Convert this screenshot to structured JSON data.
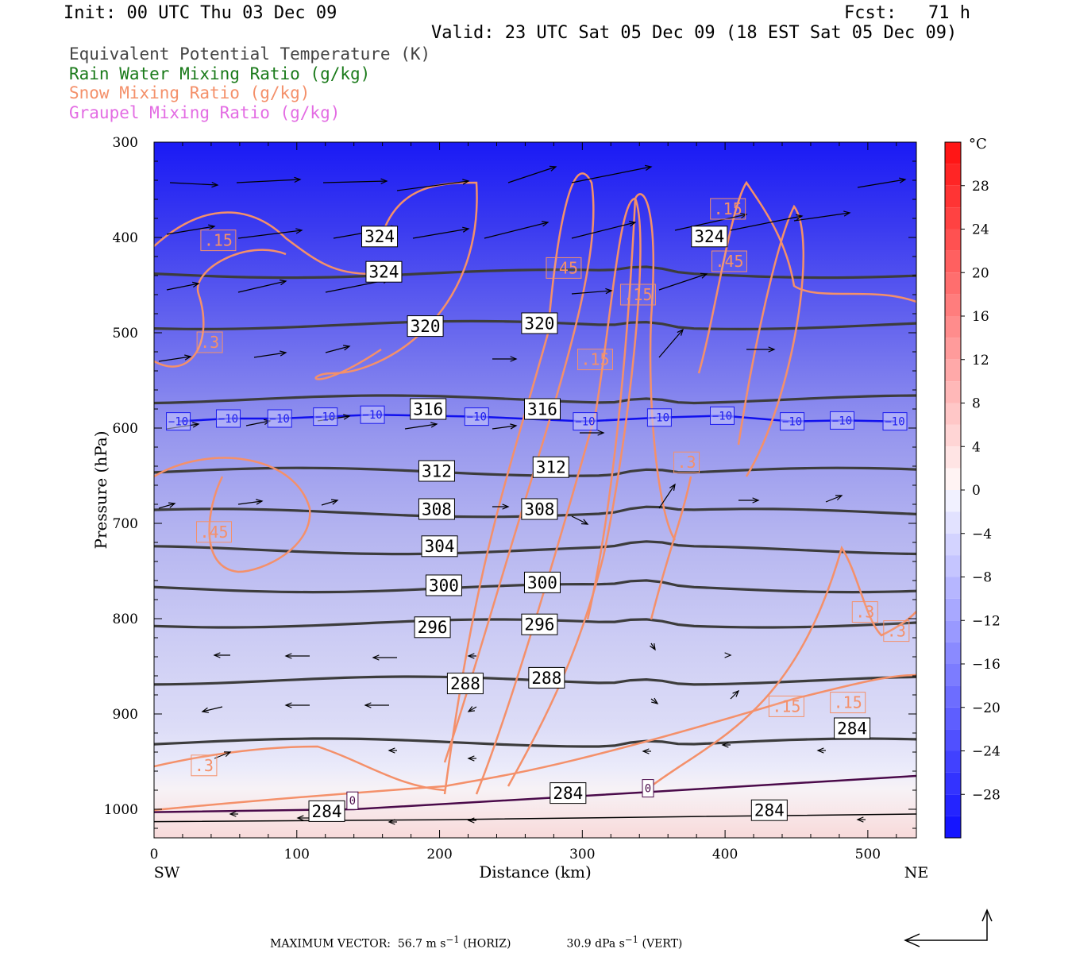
{
  "header": {
    "init": "Init: 00 UTC Thu 03 Dec 09",
    "fcst": "Fcst:   71 h",
    "valid": "Valid: 23 UTC Sat 05 Dec 09 (18 EST Sat 05 Dec 09)"
  },
  "fields": [
    {
      "label": "Equivalent Potential Temperature (K)",
      "color": "#444444"
    },
    {
      "label": "Rain Water Mixing Ratio (g/kg)",
      "color": "#1a7a1a"
    },
    {
      "label": "Snow Mixing Ratio (g/kg)",
      "color": "#f4906a"
    },
    {
      "label": "Graupel Mixing Ratio (g/kg)",
      "color": "#e36ce3"
    }
  ],
  "chart_data": {
    "type": "cross-section",
    "xlabel": "Distance (km)",
    "ylabel": "Pressure (hPa)",
    "x_ticks": [
      0,
      100,
      200,
      300,
      400,
      500
    ],
    "y_ticks": [
      300,
      400,
      500,
      600,
      700,
      800,
      900,
      1000
    ],
    "xlim": [
      0,
      534
    ],
    "ylim": [
      300,
      1030
    ],
    "left_end": "SW",
    "right_end": "NE",
    "colorbar": {
      "unit": "°C",
      "tick_labels": [
        "28",
        "24",
        "20",
        "16",
        "12",
        "8",
        "4",
        "0",
        "−4",
        "−8",
        "−12",
        "−16",
        "−20",
        "−24",
        "−28"
      ],
      "range": [
        -32,
        32
      ]
    },
    "theta_e_contours": [
      {
        "value": 324,
        "p": 438
      },
      {
        "value": 320,
        "p": 492
      },
      {
        "value": 316,
        "p": 570
      },
      {
        "value": 312,
        "p": 646
      },
      {
        "value": 308,
        "p": 689
      },
      {
        "value": 304,
        "p": 728
      },
      {
        "value": 300,
        "p": 768
      },
      {
        "value": 296,
        "p": 805
      },
      {
        "value": 288,
        "p": 865
      },
      {
        "value": 284,
        "p": 930
      }
    ],
    "theta_e_labels": [
      {
        "text": "324",
        "x": 158,
        "p": 399
      },
      {
        "text": "324",
        "x": 161,
        "p": 436
      },
      {
        "text": "324",
        "x": 389,
        "p": 399
      },
      {
        "text": "320",
        "x": 190,
        "p": 493
      },
      {
        "text": "320",
        "x": 270,
        "p": 490
      },
      {
        "text": "316",
        "x": 192,
        "p": 580
      },
      {
        "text": "316",
        "x": 272,
        "p": 580
      },
      {
        "text": "312",
        "x": 198,
        "p": 645
      },
      {
        "text": "312",
        "x": 278,
        "p": 641
      },
      {
        "text": "308",
        "x": 198,
        "p": 685
      },
      {
        "text": "308",
        "x": 270,
        "p": 685
      },
      {
        "text": "304",
        "x": 200,
        "p": 724
      },
      {
        "text": "300",
        "x": 203,
        "p": 765
      },
      {
        "text": "300",
        "x": 272,
        "p": 762
      },
      {
        "text": "296",
        "x": 195,
        "p": 809
      },
      {
        "text": "296",
        "x": 270,
        "p": 806
      },
      {
        "text": "288",
        "x": 218,
        "p": 868
      },
      {
        "text": "288",
        "x": 275,
        "p": 862
      },
      {
        "text": "284",
        "x": 290,
        "p": 983
      },
      {
        "text": "284",
        "x": 489,
        "p": 915
      },
      {
        "text": "284",
        "x": 431,
        "p": 1001
      },
      {
        "text": "284",
        "x": 121,
        "p": 1002
      }
    ],
    "isotherm_labels": [
      {
        "text": "−10",
        "x": 17,
        "p": 593
      },
      {
        "text": "−10",
        "x": 52,
        "p": 590
      },
      {
        "text": "−10",
        "x": 88,
        "p": 590
      },
      {
        "text": "−10",
        "x": 120,
        "p": 588
      },
      {
        "text": "−10",
        "x": 153,
        "p": 586
      },
      {
        "text": "−10",
        "x": 226,
        "p": 588
      },
      {
        "text": "−10",
        "x": 302,
        "p": 593
      },
      {
        "text": "−10",
        "x": 354,
        "p": 589
      },
      {
        "text": "−10",
        "x": 398,
        "p": 587
      },
      {
        "text": "−10",
        "x": 447,
        "p": 593
      },
      {
        "text": "−10",
        "x": 482,
        "p": 592
      },
      {
        "text": "−10",
        "x": 519,
        "p": 593
      },
      {
        "text": "0",
        "x": 346,
        "p": 978
      },
      {
        "text": "0",
        "x": 139,
        "p": 991
      }
    ],
    "snow_labels": [
      {
        "text": ".15",
        "x": 45,
        "p": 403
      },
      {
        "text": ".3",
        "x": 39,
        "p": 510
      },
      {
        "text": ".45",
        "x": 42,
        "p": 709
      },
      {
        "text": ".3",
        "x": 35,
        "p": 954
      },
      {
        "text": ".45",
        "x": 287,
        "p": 432
      },
      {
        "text": ".15",
        "x": 339,
        "p": 460
      },
      {
        "text": ".15",
        "x": 402,
        "p": 370
      },
      {
        "text": ".45",
        "x": 403,
        "p": 425
      },
      {
        "text": ".15",
        "x": 309,
        "p": 528
      },
      {
        "text": ".3",
        "x": 373,
        "p": 636
      },
      {
        "text": ".3",
        "x": 498,
        "p": 793
      },
      {
        "text": ".3",
        "x": 520,
        "p": 813
      },
      {
        "text": ".15",
        "x": 443,
        "p": 892
      },
      {
        "text": ".15",
        "x": 486,
        "p": 888
      }
    ],
    "footer": {
      "max_vector_label": "MAXIMUM VECTOR:",
      "horiz_value": "56.7 m s",
      "horiz_exp": "−1",
      "horiz_suffix": "(HORIZ)",
      "vert_value": "30.9 dPa s",
      "vert_exp": "−1",
      "vert_suffix": "(VERT)"
    }
  }
}
